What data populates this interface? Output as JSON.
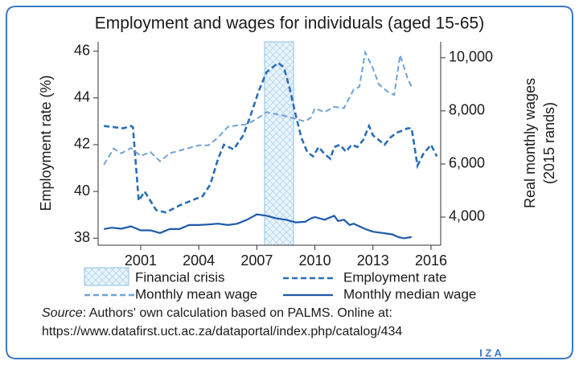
{
  "chart_data": {
    "type": "line",
    "title": "Employment and wages for individuals (aged 15-65)",
    "ylabel": "Employment rate (%)",
    "y2label": [
      "Real monthly wages",
      "(2015 rands)"
    ],
    "xlim": [
      1998.8,
      2016.5
    ],
    "xticks": [
      2001,
      2004,
      2007,
      2010,
      2013,
      2016
    ],
    "ylim": [
      37.7,
      46.4
    ],
    "yticks": [
      38,
      40,
      42,
      44,
      46
    ],
    "y2lim": [
      2940,
      10600
    ],
    "y2ticks": [
      {
        "value": 4000,
        "label": "4,000"
      },
      {
        "value": 6000,
        "label": "6,000"
      },
      {
        "value": 8000,
        "label": "8,000"
      },
      {
        "value": 10000,
        "label": "10,000"
      }
    ],
    "shaded_region": {
      "label": "Financial crisis",
      "x": [
        2007.4,
        2008.9
      ],
      "color": "#8fc3e6"
    },
    "series": [
      {
        "name": "Employment rate",
        "color": "#2a6db5",
        "style": "dashed",
        "axis": "y",
        "x": [
          1999.1,
          1999.6,
          2000.1,
          2000.5,
          2000.6,
          2000.9,
          2001.2,
          2001.5,
          2001.8,
          2002.3,
          2003.0,
          2003.6,
          2004.2,
          2004.6,
          2005.0,
          2005.3,
          2005.8,
          2006.3,
          2006.7,
          2007.1,
          2007.5,
          2007.8,
          2008.1,
          2008.4,
          2008.7,
          2009.0,
          2009.3,
          2009.6,
          2009.9,
          2010.2,
          2010.5,
          2010.8,
          2011.0,
          2011.3,
          2011.6,
          2011.9,
          2012.2,
          2012.5,
          2012.8,
          2013.0,
          2013.3,
          2013.6,
          2013.9,
          2014.2,
          2014.5,
          2014.8,
          2015.0,
          2015.3,
          2015.6,
          2016.0,
          2016.3
        ],
        "values": [
          42.8,
          42.75,
          42.7,
          42.8,
          42.75,
          39.6,
          40.0,
          39.6,
          39.2,
          39.1,
          39.4,
          39.6,
          39.8,
          40.3,
          41.4,
          42.0,
          41.8,
          42.4,
          43.3,
          44.3,
          45.1,
          45.3,
          45.5,
          45.3,
          44.4,
          43.3,
          42.3,
          41.7,
          41.5,
          41.9,
          41.6,
          41.4,
          41.9,
          42.0,
          41.7,
          42.0,
          41.9,
          42.2,
          42.8,
          42.4,
          42.2,
          42.0,
          42.3,
          42.5,
          42.6,
          42.7,
          42.7,
          41.1,
          41.6,
          42.0,
          41.5
        ]
      },
      {
        "name": "Monthly mean wage",
        "color": "#6fa3d6",
        "style": "dashed",
        "axis": "y2",
        "x": [
          1999.1,
          1999.6,
          2000.0,
          2000.5,
          2001.0,
          2001.5,
          2002.0,
          2002.5,
          2003.0,
          2003.5,
          2004.0,
          2004.5,
          2005.0,
          2005.5,
          2006.0,
          2006.5,
          2007.0,
          2007.5,
          2008.5,
          2009.5,
          2009.8,
          2010.0,
          2010.5,
          2011.0,
          2011.5,
          2012.0,
          2012.3,
          2012.6,
          2013.0,
          2013.3,
          2013.8,
          2014.1,
          2014.4,
          2014.8,
          2015.0
        ],
        "values": [
          5970,
          6580,
          6400,
          6600,
          6300,
          6450,
          6100,
          6400,
          6500,
          6600,
          6700,
          6700,
          7000,
          7400,
          7450,
          7500,
          7700,
          7950,
          7800,
          7600,
          7750,
          8100,
          7950,
          8150,
          8100,
          8800,
          8900,
          10200,
          9600,
          9000,
          8700,
          8600,
          10100,
          9200,
          8900
        ]
      },
      {
        "name": "Monthly median wage",
        "color": "#1d5aa8",
        "style": "solid",
        "axis": "y2",
        "x": [
          1999.1,
          1999.5,
          2000.0,
          2000.5,
          2001.0,
          2001.5,
          2002.0,
          2002.5,
          2003.0,
          2003.5,
          2004.0,
          2004.5,
          2005.0,
          2005.5,
          2006.0,
          2006.5,
          2007.0,
          2007.5,
          2008.0,
          2008.5,
          2009.0,
          2009.5,
          2009.8,
          2010.0,
          2010.5,
          2011.0,
          2011.2,
          2011.5,
          2011.8,
          2012.0,
          2012.3,
          2012.6,
          2013.0,
          2013.5,
          2014.0,
          2014.3,
          2014.6,
          2015.0
        ],
        "values": [
          3550,
          3600,
          3560,
          3650,
          3500,
          3500,
          3400,
          3550,
          3550,
          3700,
          3700,
          3720,
          3750,
          3700,
          3750,
          3900,
          4100,
          4050,
          3950,
          3900,
          3800,
          3820,
          3950,
          4000,
          3900,
          4050,
          3850,
          3900,
          3700,
          3750,
          3650,
          3550,
          3450,
          3400,
          3350,
          3250,
          3200,
          3250
        ]
      }
    ],
    "source_label": "Source",
    "source_text": ": Authors' own calculation based on PALMS. Online at:",
    "source_url": "https://www.datafirst.uct.ac.za/dataportal/index.php/catalog/434",
    "logo": "I Z A"
  }
}
